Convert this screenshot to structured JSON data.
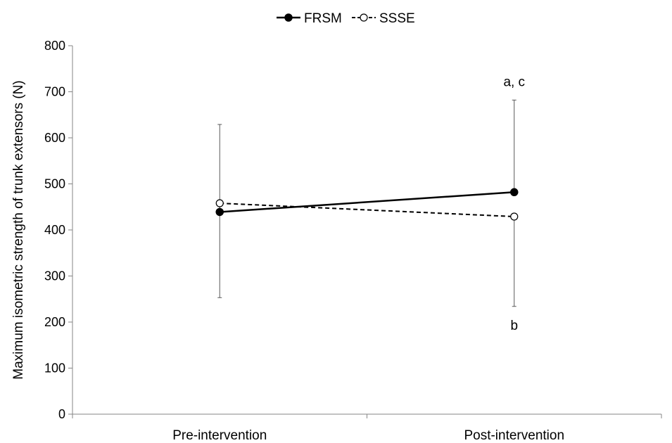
{
  "chart_data": {
    "type": "line",
    "categories": [
      "Pre-intervention",
      "Post-intervention"
    ],
    "ylabel": "Maximum isometric strength of trunk extensors (N)",
    "ylim": [
      0,
      800
    ],
    "yticks": [
      0,
      100,
      200,
      300,
      400,
      500,
      600,
      700,
      800
    ],
    "legend_position": "top-center",
    "grid": false,
    "series": [
      {
        "name": "FRSM",
        "style": "solid",
        "marker": "filled-circle",
        "color": "#000000",
        "values": [
          439,
          482
        ],
        "error_up": [
          629,
          682
        ],
        "error_down": [
          null,
          null
        ]
      },
      {
        "name": "SSSE",
        "style": "dashed",
        "marker": "open-circle",
        "color": "#000000",
        "values": [
          458,
          429
        ],
        "error_up": [
          null,
          null
        ],
        "error_down": [
          253,
          234
        ]
      }
    ],
    "annotations": [
      {
        "text": "a, c",
        "category": "Post-intervention",
        "y": 712
      },
      {
        "text": "b",
        "category": "Post-intervention",
        "y": 183
      }
    ]
  }
}
